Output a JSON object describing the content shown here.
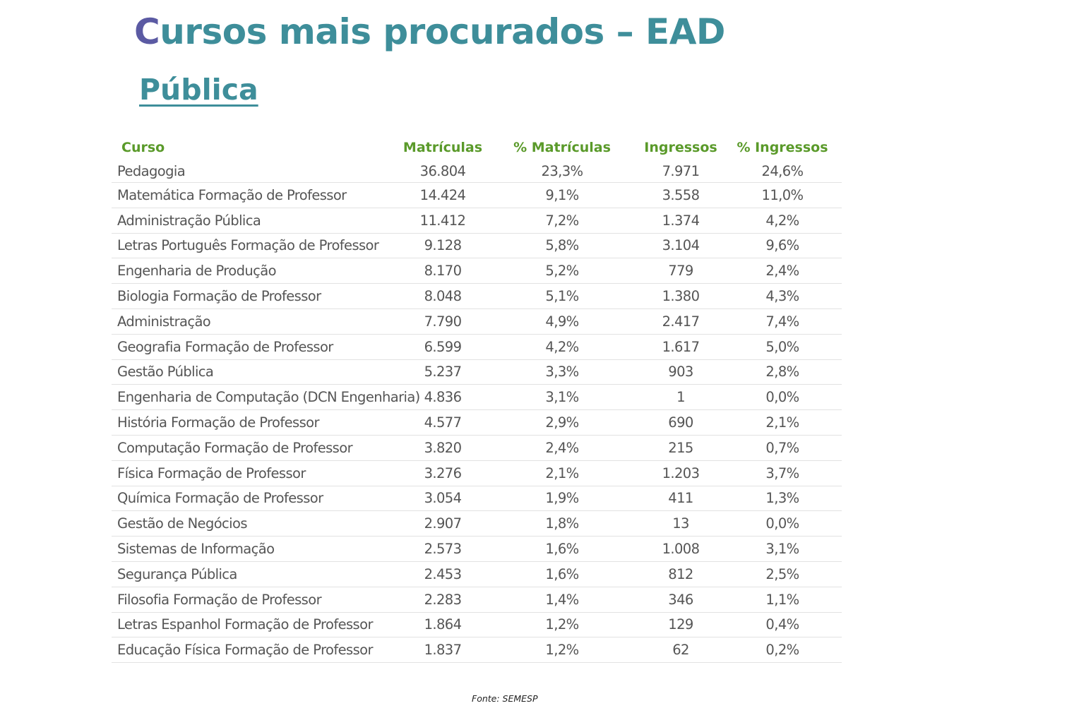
{
  "page": {
    "title_first_letter": "C",
    "title_rest": "ursos mais procurados – EAD",
    "subtitle": "Pública",
    "source": "Fonte: SEMESP"
  },
  "colors": {
    "title": "#3e8e9a",
    "title_first_letter": "#5b5aa3",
    "header_text": "#5a9a2a",
    "body_text": "#555555",
    "row_divider": "#e2e2e2"
  },
  "table": {
    "headers": [
      "Curso",
      "Matrículas",
      "% Matrículas",
      "Ingressos",
      "% Ingressos"
    ],
    "rows": [
      [
        "Pedagogia",
        "36.804",
        "23,3%",
        "7.971",
        "24,6%"
      ],
      [
        "Matemática Formação de Professor",
        "14.424",
        "9,1%",
        "3.558",
        "11,0%"
      ],
      [
        "Administração Pública",
        "11.412",
        "7,2%",
        "1.374",
        "4,2%"
      ],
      [
        "Letras Português Formação de Professor",
        "9.128",
        "5,8%",
        "3.104",
        "9,6%"
      ],
      [
        "Engenharia de Produção",
        "8.170",
        "5,2%",
        "779",
        "2,4%"
      ],
      [
        "Biologia Formação de Professor",
        "8.048",
        "5,1%",
        "1.380",
        "4,3%"
      ],
      [
        "Administração",
        "7.790",
        "4,9%",
        "2.417",
        "7,4%"
      ],
      [
        "Geografia Formação de Professor",
        "6.599",
        "4,2%",
        "1.617",
        "5,0%"
      ],
      [
        "Gestão Pública",
        "5.237",
        "3,3%",
        "903",
        "2,8%"
      ],
      [
        "Engenharia de Computação (DCN Engenharia)",
        "4.836",
        "3,1%",
        "1",
        "0,0%"
      ],
      [
        "História Formação de Professor",
        "4.577",
        "2,9%",
        "690",
        "2,1%"
      ],
      [
        "Computação Formação de Professor",
        "3.820",
        "2,4%",
        "215",
        "0,7%"
      ],
      [
        "Física Formação de Professor",
        "3.276",
        "2,1%",
        "1.203",
        "3,7%"
      ],
      [
        "Química Formação de Professor",
        "3.054",
        "1,9%",
        "411",
        "1,3%"
      ],
      [
        "Gestão de Negócios",
        "2.907",
        "1,8%",
        "13",
        "0,0%"
      ],
      [
        "Sistemas de Informação",
        "2.573",
        "1,6%",
        "1.008",
        "3,1%"
      ],
      [
        "Segurança Pública",
        "2.453",
        "1,6%",
        "812",
        "2,5%"
      ],
      [
        "Filosofia Formação de Professor",
        "2.283",
        "1,4%",
        "346",
        "1,1%"
      ],
      [
        "Letras Espanhol Formação de Professor",
        "1.864",
        "1,2%",
        "129",
        "0,4%"
      ],
      [
        "Educação Física Formação de Professor",
        "1.837",
        "1,2%",
        "62",
        "0,2%"
      ]
    ]
  }
}
